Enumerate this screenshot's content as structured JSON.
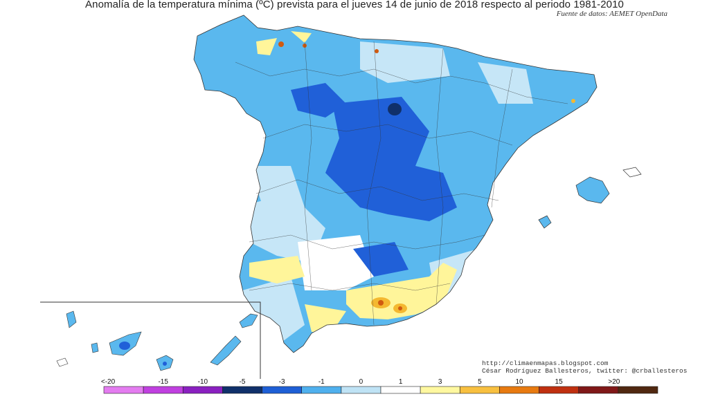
{
  "title": "Anomalía de la temperatura mínima (ºC) prevista para el jueves 14 de junio de 2018 respecto al periodo 1981-2010",
  "source": "Fuente de datos: AEMET OpenData",
  "credits": {
    "blog": "http://climaenmapas.blogspot.com",
    "author": "César Rodríguez Ballesteros, twitter: @crballesteros"
  },
  "legend": {
    "labels": [
      "<-20",
      "-15",
      "-10",
      "-5",
      "-3",
      "-1",
      "0",
      "1",
      "3",
      "5",
      "10",
      "15",
      ">20"
    ],
    "colors": [
      "#e47cf0",
      "#c040e0",
      "#8a20c0",
      "#10306a",
      "#1e5fd6",
      "#4fb0ee",
      "#bfe3f5",
      "#ffffff",
      "#fff8a0",
      "#f8c040",
      "#e87a10",
      "#c03010",
      "#801818",
      "#502810"
    ]
  },
  "map_legend_colors": {
    "cool_strong": "#2060d8",
    "cool_mid": "#5ab8ee",
    "cool_light": "#c6e6f7",
    "neutral": "#ffffff",
    "warm_light": "#fff59a",
    "warm_mid": "#f4b830",
    "warm_strong": "#d05a10"
  }
}
